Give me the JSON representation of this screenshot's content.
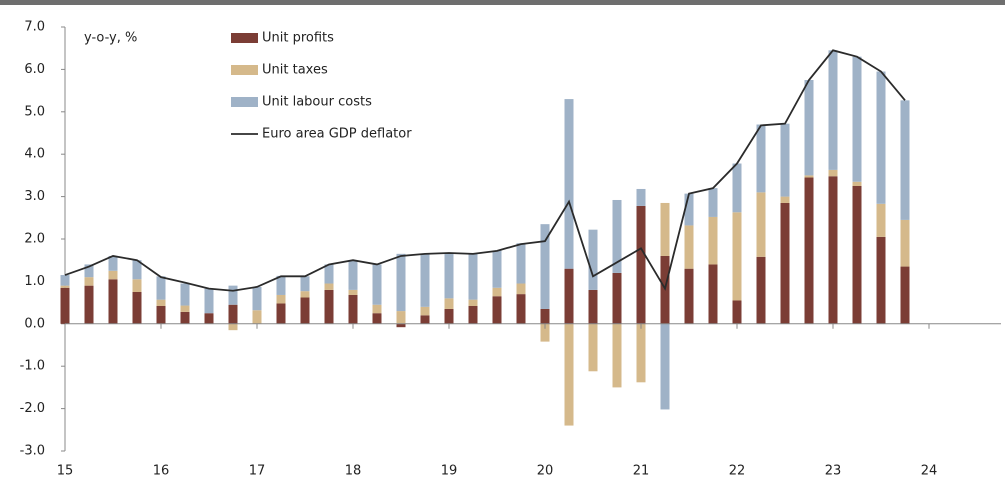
{
  "chart_data": {
    "type": "stacked_bar_line",
    "annotation": "y-o-y, %",
    "x": [
      15,
      15.25,
      15.5,
      15.75,
      16,
      16.25,
      16.5,
      16.75,
      17,
      17.25,
      17.5,
      17.75,
      18,
      18.25,
      18.5,
      18.75,
      19,
      19.25,
      19.5,
      19.75,
      20,
      20.25,
      20.5,
      20.75,
      21,
      21.25,
      21.5,
      21.75,
      22,
      22.25,
      22.5,
      22.75,
      23,
      23.25,
      23.5,
      23.75
    ],
    "series": [
      {
        "name": "Unit profits",
        "color": "#7b3d35",
        "kind": "bar",
        "values": [
          0.85,
          0.9,
          1.05,
          0.75,
          0.42,
          0.28,
          0.25,
          0.45,
          0.0,
          0.48,
          0.62,
          0.8,
          0.68,
          0.25,
          -0.08,
          0.2,
          0.35,
          0.42,
          0.65,
          0.7,
          0.35,
          1.3,
          0.8,
          1.2,
          2.78,
          1.6,
          1.3,
          1.4,
          0.55,
          1.58,
          2.85,
          3.45,
          3.48,
          3.25,
          2.05,
          1.35
        ]
      },
      {
        "name": "Unit taxes",
        "color": "#d5b98b",
        "kind": "bar",
        "values": [
          0.05,
          0.2,
          0.2,
          0.3,
          0.15,
          0.15,
          0.0,
          -0.15,
          0.32,
          0.2,
          0.15,
          0.15,
          0.12,
          0.2,
          0.3,
          0.2,
          0.25,
          0.15,
          0.2,
          0.25,
          -0.42,
          -2.4,
          -1.12,
          -1.5,
          -1.38,
          1.25,
          1.02,
          1.12,
          2.08,
          1.52,
          0.15,
          0.05,
          0.15,
          0.1,
          0.78,
          1.1
        ]
      },
      {
        "name": "Unit labour costs",
        "color": "#9fb2c7",
        "kind": "bar",
        "values": [
          0.25,
          0.3,
          0.35,
          0.45,
          0.55,
          0.52,
          0.58,
          0.45,
          0.55,
          0.45,
          0.35,
          0.45,
          0.68,
          0.95,
          1.35,
          1.25,
          1.08,
          1.1,
          0.88,
          0.95,
          2.0,
          4.0,
          1.42,
          1.72,
          0.4,
          -2.02,
          0.75,
          0.68,
          1.15,
          1.6,
          1.72,
          2.25,
          2.82,
          2.95,
          3.12,
          2.82
        ]
      },
      {
        "name": "Euro area GDP deflator",
        "color": "#2b2b2b",
        "kind": "line",
        "values": [
          1.15,
          1.35,
          1.6,
          1.5,
          1.1,
          0.97,
          0.83,
          0.78,
          0.87,
          1.12,
          1.12,
          1.4,
          1.5,
          1.4,
          1.6,
          1.65,
          1.67,
          1.65,
          1.72,
          1.88,
          1.95,
          2.88,
          1.12,
          1.45,
          1.78,
          0.83,
          3.07,
          3.2,
          3.78,
          4.68,
          4.72,
          5.75,
          6.45,
          6.3,
          5.95,
          5.27
        ]
      }
    ],
    "xlim": [
      15,
      24.75
    ],
    "xticks": [
      15,
      16,
      17,
      18,
      19,
      20,
      21,
      22,
      23,
      24
    ],
    "ylim": [
      -3,
      7
    ],
    "yticks": [
      {
        "value": -3,
        "label": "-3.0"
      },
      {
        "value": -2,
        "label": "-2.0"
      },
      {
        "value": -1,
        "label": "-1.0"
      },
      {
        "value": 0,
        "label": "0.0"
      },
      {
        "value": 1,
        "label": "1.0"
      },
      {
        "value": 2,
        "label": "2.0"
      },
      {
        "value": 3,
        "label": "3.0"
      },
      {
        "value": 4,
        "label": "4.0"
      },
      {
        "value": 5,
        "label": "5.0"
      },
      {
        "value": 6,
        "label": "6.0"
      },
      {
        "value": 7,
        "label": "7.0"
      }
    ]
  }
}
